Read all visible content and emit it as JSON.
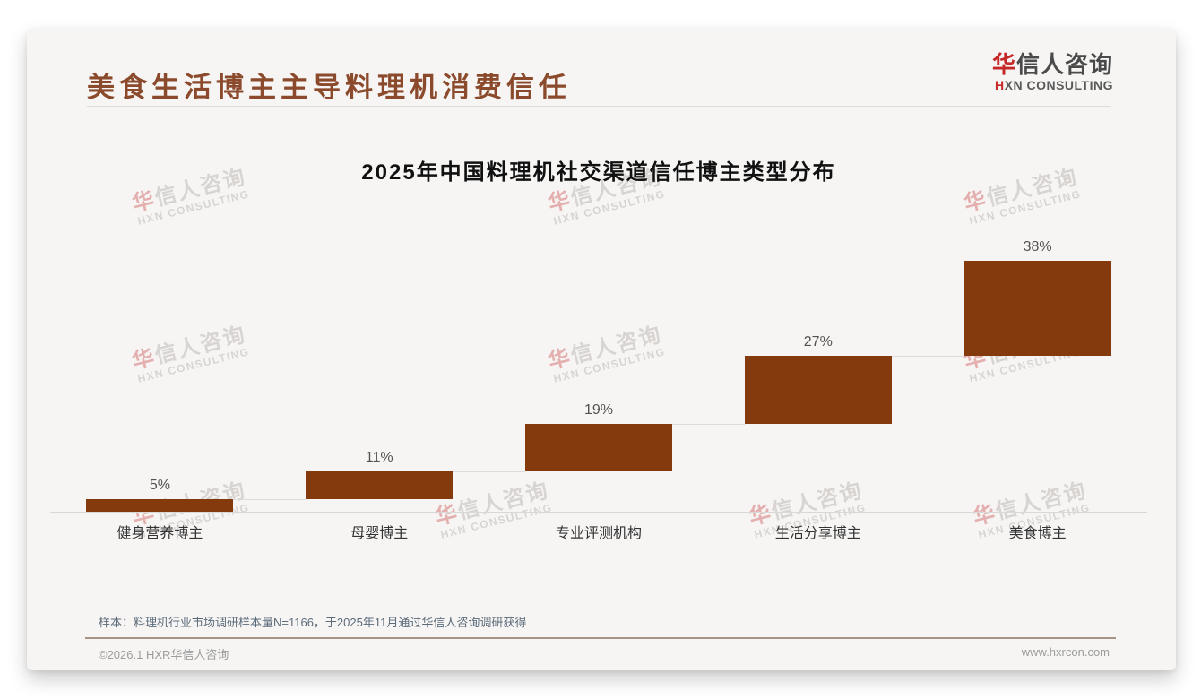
{
  "page": {
    "title": "美食生活博主主导料理机消费信任",
    "logo": {
      "cn_first": "华",
      "cn_rest": "信人咨询",
      "en_first": "H",
      "en_rest": "XN CONSULTING"
    },
    "footer": {
      "note": "样本：料理机行业市场调研样本量N=1166，于2025年11月通过华信人咨询调研获得",
      "copyright": "©2026.1 HXR华信人咨询",
      "website": "www.hxrcon.com"
    }
  },
  "colors": {
    "bar": "#853A0E",
    "title_brown": "#8B4A2B",
    "brand_red": "#C62828",
    "note_slate": "#5C6B7A"
  },
  "watermark": {
    "line1_first": "华",
    "line1_rest": "信人咨询",
    "line2": "HXN CONSULTING"
  },
  "chart_data": {
    "type": "bar",
    "subtype": "waterfall-steps",
    "title": "2025年中国料理机社交渠道信任博主类型分布",
    "categories": [
      "健身营养博主",
      "母婴博主",
      "专业评测机构",
      "生活分享博主",
      "美食博主"
    ],
    "values": [
      5,
      11,
      19,
      27,
      38
    ],
    "labels": [
      "5%",
      "11%",
      "19%",
      "27%",
      "38%"
    ],
    "cumulative_start": [
      0,
      5,
      16,
      35,
      62
    ],
    "unit": "%",
    "ylim": [
      0,
      100
    ],
    "xlabel": "",
    "ylabel": "",
    "grid": false,
    "legend": false
  }
}
